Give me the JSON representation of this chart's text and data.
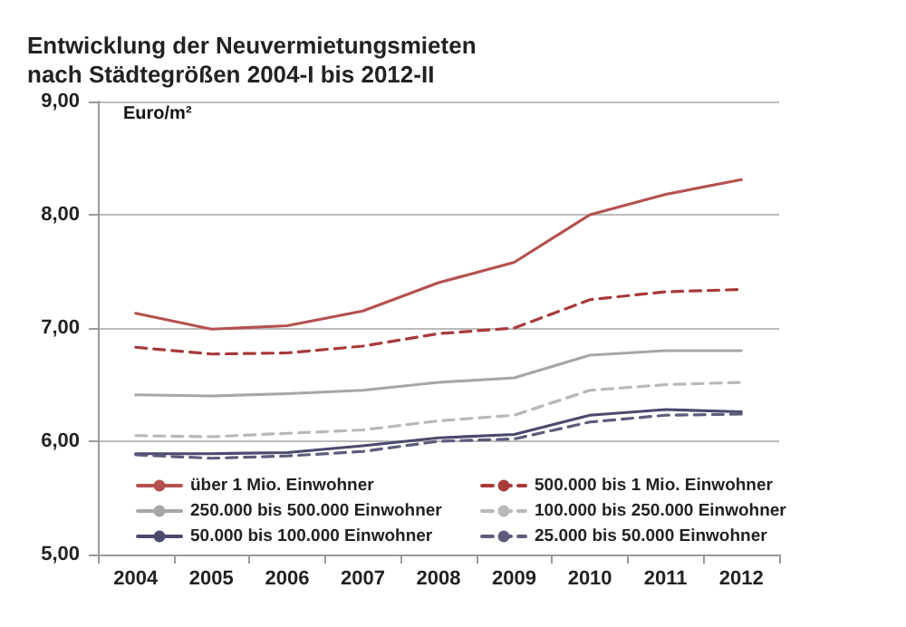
{
  "chart_data": {
    "type": "line",
    "title": "Entwicklung der Neuvermietungsmieten\nnach Städtegrößen 2004-I bis 2012-II",
    "ylabel": "Euro/m²",
    "categories": [
      "2004",
      "2005",
      "2006",
      "2007",
      "2008",
      "2009",
      "2010",
      "2011",
      "2012"
    ],
    "series": [
      {
        "name": "über 1 Mio. Einwohner",
        "color": "#b5514f",
        "line_style": "solid",
        "values": [
          7.13,
          6.99,
          7.02,
          7.15,
          7.4,
          7.58,
          8.0,
          8.18,
          8.31
        ]
      },
      {
        "name": "500.000 bis 1 Mio. Einwohner",
        "color": "#a83a3a",
        "line_style": "dashed",
        "values": [
          6.83,
          6.77,
          6.78,
          6.84,
          6.95,
          7.0,
          7.25,
          7.32,
          7.34
        ]
      },
      {
        "name": "250.000 bis 500.000 Einwohner",
        "color": "#a6a6a6",
        "line_style": "solid",
        "values": [
          6.41,
          6.4,
          6.42,
          6.45,
          6.52,
          6.56,
          6.76,
          6.8,
          6.8
        ]
      },
      {
        "name": "100.000 bis 250.000 Einwohner",
        "color": "#b8b8b8",
        "line_style": "dashed",
        "values": [
          6.05,
          6.04,
          6.07,
          6.1,
          6.18,
          6.23,
          6.45,
          6.5,
          6.52
        ]
      },
      {
        "name": "50.000 bis 100.000 Einwohner",
        "color": "#4a4a6e",
        "line_style": "solid",
        "values": [
          5.89,
          5.89,
          5.9,
          5.96,
          6.03,
          6.06,
          6.23,
          6.28,
          6.26
        ]
      },
      {
        "name": "25.000 bis 50.000 Einwohner",
        "color": "#5c5c7c",
        "line_style": "dashed",
        "values": [
          5.88,
          5.85,
          5.87,
          5.91,
          6.0,
          6.02,
          6.17,
          6.23,
          6.24
        ]
      }
    ],
    "ylim": [
      5,
      9
    ],
    "yticks": [
      {
        "value": 5,
        "label": "5,00"
      },
      {
        "value": 6,
        "label": "6,00"
      },
      {
        "value": 7,
        "label": "7,00"
      },
      {
        "value": 8,
        "label": "8,00"
      },
      {
        "value": 9,
        "label": "9,00"
      }
    ],
    "grid": "y",
    "legend": "bottom",
    "marker": "none"
  }
}
